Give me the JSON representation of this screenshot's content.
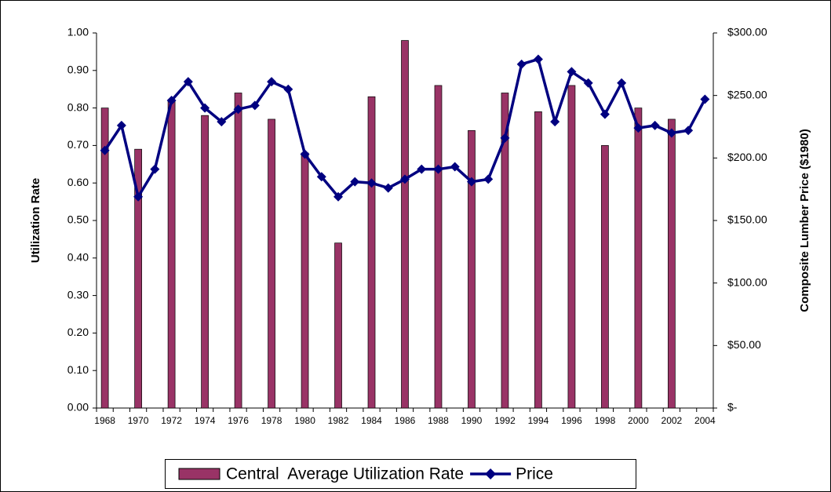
{
  "chart_data": {
    "type": "bar-line",
    "y_label": "Utilization Rate",
    "y2_label": "Composite Lumber Price ($1980)",
    "categories": [
      "1968",
      null,
      "1970",
      null,
      "1972",
      null,
      "1974",
      null,
      "1976",
      null,
      "1978",
      null,
      "1980",
      null,
      "1982",
      null,
      "1984",
      null,
      "1986",
      null,
      "1988",
      null,
      "1990",
      null,
      "1992",
      null,
      "1994",
      null,
      "1996",
      null,
      "1998",
      null,
      "2000",
      null,
      "2002",
      null,
      "2004"
    ],
    "series": [
      {
        "name": "Central  Average Utilization Rate",
        "type": "bar",
        "color": "#993366",
        "axis": "y",
        "values": [
          0.8,
          null,
          0.69,
          null,
          0.82,
          null,
          0.78,
          null,
          0.84,
          null,
          0.77,
          null,
          0.68,
          null,
          0.44,
          null,
          0.83,
          null,
          0.98,
          null,
          0.86,
          null,
          0.74,
          null,
          0.84,
          null,
          0.79,
          null,
          0.86,
          null,
          0.7,
          null,
          0.8,
          null,
          0.77,
          null,
          null
        ]
      },
      {
        "name": "Price",
        "type": "line",
        "color": "#000080",
        "axis": "y2",
        "values": [
          206,
          226,
          169,
          191,
          246,
          261,
          240,
          229,
          239,
          242,
          261,
          255,
          203,
          185,
          169,
          181,
          180,
          176,
          183,
          191,
          191,
          193,
          181,
          183,
          216,
          275,
          279,
          229,
          269,
          260,
          235,
          260,
          224,
          226,
          220,
          222,
          247
        ]
      }
    ],
    "ylim": [
      0,
      1
    ],
    "yticks": [
      {
        "value": 0,
        "label": "0.00"
      },
      {
        "value": 0.1,
        "label": "0.10"
      },
      {
        "value": 0.2,
        "label": "0.20"
      },
      {
        "value": 0.3,
        "label": "0.30"
      },
      {
        "value": 0.4,
        "label": "0.40"
      },
      {
        "value": 0.5,
        "label": "0.50"
      },
      {
        "value": 0.6,
        "label": "0.60"
      },
      {
        "value": 0.7,
        "label": "0.70"
      },
      {
        "value": 0.8,
        "label": "0.80"
      },
      {
        "value": 0.9,
        "label": "0.90"
      },
      {
        "value": 1,
        "label": "1.00"
      }
    ],
    "y2lim": [
      0,
      300
    ],
    "y2ticks": [
      {
        "value": 0,
        "label": "$-"
      },
      {
        "value": 50,
        "label": "$50.00"
      },
      {
        "value": 100,
        "label": "$100.00"
      },
      {
        "value": 150,
        "label": "$150.00"
      },
      {
        "value": 200,
        "label": "$200.00"
      },
      {
        "value": 250,
        "label": "$250.00"
      },
      {
        "value": 300,
        "label": "$300.00"
      }
    ],
    "grid": false,
    "legend": "bottom"
  }
}
